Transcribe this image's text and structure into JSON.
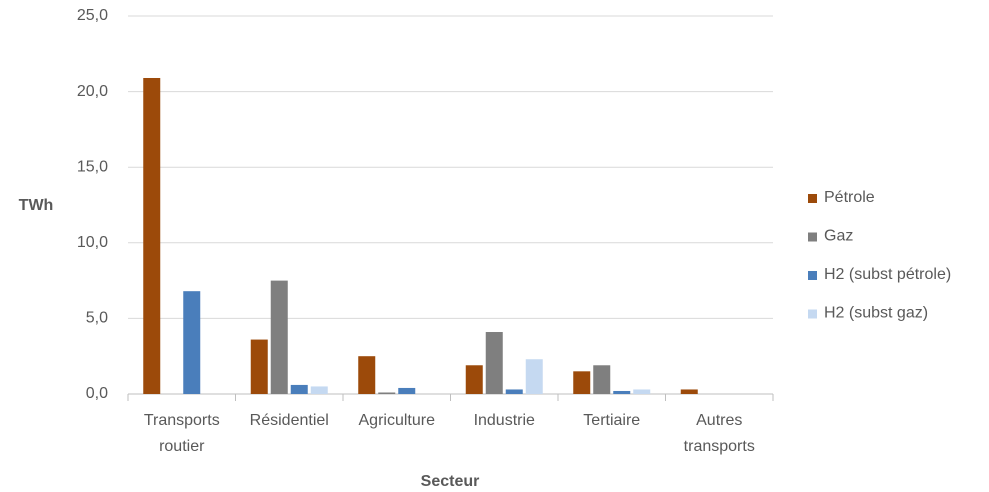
{
  "chart_data": {
    "type": "bar",
    "categories": [
      "Transports routier",
      "Résidentiel",
      "Agriculture",
      "Industrie",
      "Tertiaire",
      "Autres transports"
    ],
    "series": [
      {
        "name": "Pétrole",
        "color": "#9c4a0a",
        "values": [
          20.9,
          3.6,
          2.5,
          1.9,
          1.5,
          0.3
        ]
      },
      {
        "name": "Gaz",
        "color": "#7f7f7f",
        "values": [
          0,
          7.5,
          0.1,
          4.1,
          1.9,
          0
        ]
      },
      {
        "name": "H2 (subst pétrole)",
        "color": "#4a7ebb",
        "values": [
          6.8,
          0.6,
          0.4,
          0.3,
          0.2,
          0
        ]
      },
      {
        "name": "H2 (subst gaz)",
        "color": "#c5d9f1",
        "values": [
          0,
          0.5,
          0,
          2.3,
          0.3,
          0
        ]
      }
    ],
    "ylabel": "TWh",
    "xlabel": "Secteur",
    "ylim": [
      0,
      25
    ],
    "yticks": [
      {
        "value": 0,
        "label": "0,0"
      },
      {
        "value": 5,
        "label": "5,0"
      },
      {
        "value": 10,
        "label": "10,0"
      },
      {
        "value": 15,
        "label": "15,0"
      },
      {
        "value": 20,
        "label": "20,0"
      },
      {
        "value": 25,
        "label": "25,0"
      }
    ],
    "grid": true,
    "legend": "right"
  }
}
